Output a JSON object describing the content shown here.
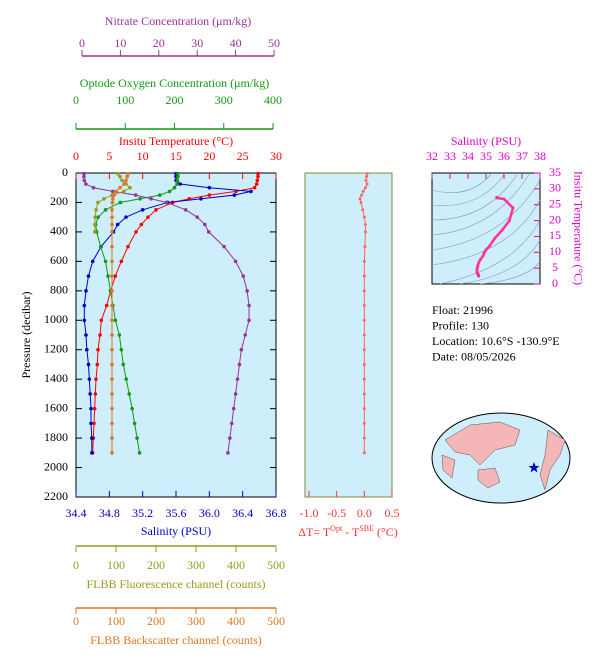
{
  "chart_data": [
    {
      "type": "profile",
      "ylabel": "Pressure (decibar)",
      "ylim": [
        0,
        2200
      ],
      "yticks": [
        0,
        200,
        400,
        600,
        800,
        1000,
        1200,
        1400,
        1600,
        1800,
        2000,
        2200
      ],
      "series": [
        {
          "xlabel": "Insitu Temperature (°C)",
          "color": "#ff0000",
          "xlim": [
            0,
            30
          ],
          "xticks": [
            0,
            5,
            10,
            15,
            20,
            25,
            30
          ],
          "pressure": [
            5,
            25,
            50,
            75,
            100,
            125,
            150,
            175,
            200,
            250,
            300,
            350,
            400,
            500,
            600,
            700,
            800,
            900,
            1000,
            1100,
            1200,
            1300,
            1400,
            1500,
            1600,
            1700,
            1800,
            1900
          ],
          "values": [
            27.3,
            27.3,
            27.2,
            27.1,
            26.8,
            24,
            20,
            17,
            14.5,
            12,
            10.8,
            9.8,
            9,
            7.8,
            6.8,
            5.9,
            5.2,
            4.6,
            3.8,
            3.6,
            3.3,
            3.2,
            3.0,
            2.9,
            2.8,
            2.7,
            2.6,
            2.5
          ]
        },
        {
          "xlabel": "Salinity (PSU)",
          "color": "#0000cc",
          "xlim": [
            34.4,
            36.8
          ],
          "xticks": [
            34.4,
            34.8,
            35.2,
            35.6,
            {
              "value": 36.0,
              "label": "36.0"
            },
            36.4,
            36.8
          ],
          "pressure": [
            5,
            25,
            50,
            75,
            100,
            125,
            150,
            175,
            200,
            250,
            300,
            350,
            400,
            500,
            600,
            700,
            800,
            900,
            1000,
            1100,
            1200,
            1300,
            1400,
            1500,
            1600,
            1700,
            1800,
            1900
          ],
          "values": [
            35.6,
            35.6,
            35.6,
            35.65,
            36.0,
            36.5,
            36.3,
            35.9,
            35.5,
            35.2,
            35.0,
            34.9,
            34.85,
            34.7,
            34.6,
            34.55,
            34.52,
            34.5,
            34.5,
            34.52,
            34.53,
            34.55,
            34.56,
            34.57,
            34.58,
            34.58,
            34.59,
            34.59
          ]
        },
        {
          "xlabel": "Optode Oxygen Concentration (μm/kg)",
          "color": "#119911",
          "xlim": [
            0,
            400
          ],
          "xticks": [
            0,
            100,
            200,
            300,
            400
          ],
          "pressure": [
            5,
            25,
            50,
            75,
            100,
            125,
            150,
            175,
            200,
            250,
            300,
            350,
            400,
            500,
            600,
            700,
            800,
            900,
            1000,
            1100,
            1200,
            1300,
            1400,
            1500,
            1600,
            1700,
            1800,
            1900
          ],
          "values": [
            207,
            207,
            206,
            205,
            200,
            190,
            170,
            130,
            90,
            60,
            45,
            40,
            42,
            50,
            60,
            65,
            70,
            75,
            80,
            88,
            92,
            96,
            102,
            108,
            114,
            119,
            124,
            129
          ]
        },
        {
          "xlabel": "Nitrate Concentration (μm/kg)",
          "color": "#993399",
          "xlim": [
            0,
            50
          ],
          "xticks": [
            0,
            10,
            20,
            30,
            40,
            50
          ],
          "pressure": [
            5,
            25,
            50,
            75,
            100,
            125,
            150,
            175,
            200,
            250,
            300,
            350,
            400,
            500,
            600,
            700,
            800,
            900,
            1000,
            1100,
            1200,
            1300,
            1400,
            1500,
            1600,
            1700,
            1800,
            1900
          ],
          "values": [
            0.5,
            0.5,
            0.6,
            1,
            3,
            8,
            14,
            18,
            22,
            27,
            30,
            32,
            33,
            37,
            40,
            42,
            43,
            43.5,
            43.5,
            42.5,
            41.5,
            41,
            40.5,
            40,
            39.5,
            39,
            38.5,
            38
          ]
        },
        {
          "xlabel": "FLBB Fluorescence channel (counts)",
          "color": "#999922",
          "xlim": [
            0,
            500
          ],
          "xticks": [
            0,
            100,
            200,
            300,
            400,
            500
          ],
          "pressure": [
            5,
            25,
            50,
            75,
            100,
            125,
            150,
            175,
            200,
            250,
            300,
            350,
            400
          ],
          "values": [
            105,
            110,
            115,
            125,
            135,
            120,
            90,
            70,
            55,
            50,
            48,
            47,
            47
          ]
        },
        {
          "xlabel": "FLBB Backscatter channel (counts)",
          "color": "#dd7722",
          "xlim": [
            0,
            500
          ],
          "xticks": [
            0,
            100,
            200,
            300,
            400,
            500
          ],
          "pressure": [
            5,
            25,
            50,
            75,
            100,
            125,
            150,
            175,
            200,
            250,
            300,
            350,
            400,
            500,
            600,
            700,
            800,
            900,
            1000,
            1100,
            1200,
            1300,
            1400,
            1500,
            1600,
            1700,
            1800,
            1900
          ],
          "values": [
            130,
            128,
            125,
            120,
            110,
            100,
            95,
            92,
            91,
            90,
            90,
            90,
            90,
            90,
            90,
            90,
            90,
            90,
            90,
            90,
            90,
            90,
            90,
            90,
            90,
            90,
            90,
            90
          ]
        }
      ]
    },
    {
      "type": "delta",
      "xlabel": [
        "ΔT= T",
        "Opt",
        " - T",
        "SBE",
        " (°C)"
      ],
      "color": "#ff6666",
      "xlim": [
        -1.0,
        0.5
      ],
      "xticks": [
        {
          "value": -1.0,
          "label": "-1.0"
        },
        -0.5,
        {
          "value": 0.0,
          "label": "0.0"
        },
        0.5
      ],
      "ylim": [
        0,
        2200
      ],
      "pressure": [
        5,
        25,
        50,
        75,
        100,
        125,
        150,
        175,
        200,
        250,
        300,
        350,
        400,
        500,
        600,
        700,
        800,
        900,
        1000,
        1100,
        1200,
        1300,
        1400,
        1500,
        1600,
        1700,
        1800,
        1900
      ],
      "values": [
        0.05,
        0.04,
        0.03,
        0.05,
        0.02,
        -0.02,
        -0.05,
        -0.08,
        -0.06,
        -0.03,
        0.0,
        0.02,
        0.02,
        0.01,
        0.0,
        0.0,
        0.0,
        0.0,
        0.0,
        0.0,
        0.0,
        0.0,
        0.0,
        0.0,
        0.0,
        0.0,
        0.0,
        0.0
      ]
    },
    {
      "type": "ts",
      "xlabel": "Salinity (PSU)",
      "ylabel": "Insitu Temperature (°C)",
      "color": "#ff3399",
      "xlim": [
        32,
        38
      ],
      "xticks": [
        32,
        33,
        34,
        35,
        36,
        37,
        38
      ],
      "ylim": [
        0,
        35
      ],
      "yticks": [
        0,
        5,
        10,
        15,
        20,
        25,
        30,
        35
      ]
    }
  ],
  "info": [
    "Float:  21996",
    "Profile:  130",
    "Location:  10.6°S  -130.9°E",
    "Date:  08/05/2026"
  ]
}
